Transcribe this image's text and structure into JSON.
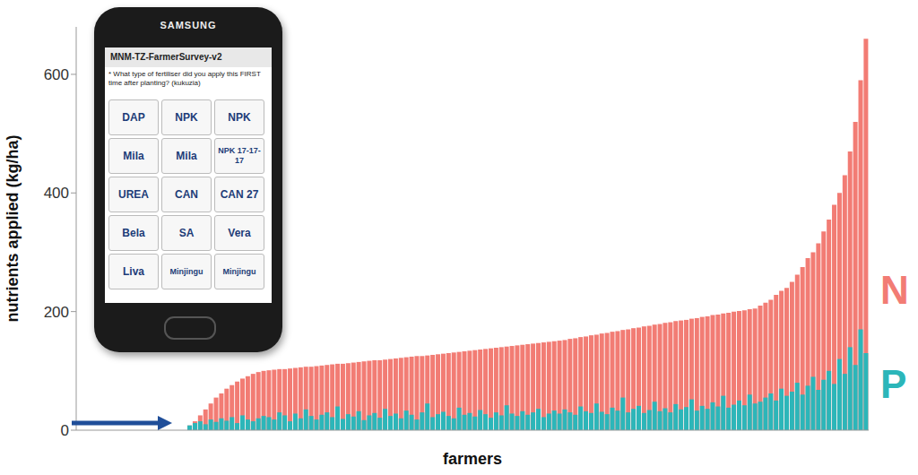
{
  "chart_data": {
    "type": "bar",
    "y_label": "nutrients applied (kg/ha)",
    "x_label": "farmers",
    "ylim": [
      0,
      680
    ],
    "yticks": [
      0,
      200,
      400,
      600
    ],
    "grid": false,
    "stacked": false,
    "tick_labels": "y",
    "series": [
      {
        "name": "N",
        "color": "#f27c74",
        "values": [
          0,
          0,
          0,
          0,
          0,
          0,
          0,
          0,
          0,
          0,
          0,
          0,
          0,
          0,
          0,
          0,
          0,
          0,
          0,
          0,
          0,
          8,
          15,
          25,
          35,
          45,
          55,
          62,
          70,
          76,
          82,
          87,
          91,
          95,
          98,
          100,
          101,
          102,
          103,
          103,
          104,
          105,
          106,
          107,
          107,
          108,
          109,
          110,
          111,
          112,
          112,
          113,
          114,
          115,
          116,
          117,
          118,
          118,
          119,
          120,
          121,
          122,
          123,
          124,
          125,
          125,
          126,
          127,
          128,
          129,
          130,
          131,
          132,
          133,
          134,
          135,
          136,
          137,
          138,
          139,
          140,
          141,
          142,
          143,
          144,
          145,
          146,
          147,
          148,
          149,
          150,
          151,
          152,
          154,
          155,
          157,
          158,
          160,
          161,
          163,
          164,
          166,
          167,
          169,
          170,
          172,
          173,
          175,
          176,
          178,
          179,
          181,
          182,
          184,
          185,
          186,
          188,
          189,
          191,
          192,
          194,
          195,
          197,
          198,
          200,
          201,
          202,
          204,
          205,
          210,
          215,
          220,
          228,
          235,
          240,
          250,
          262,
          275,
          290,
          300,
          315,
          335,
          355,
          380,
          400,
          430,
          470,
          520,
          590,
          660
        ]
      },
      {
        "name": "P",
        "color": "#2cb6b9",
        "values": [
          0,
          0,
          0,
          0,
          0,
          0,
          0,
          0,
          0,
          0,
          0,
          0,
          0,
          0,
          0,
          0,
          0,
          0,
          0,
          0,
          0,
          8,
          12,
          15,
          10,
          18,
          14,
          20,
          16,
          22,
          12,
          25,
          18,
          15,
          20,
          24,
          22,
          18,
          30,
          25,
          15,
          28,
          20,
          35,
          24,
          18,
          26,
          30,
          22,
          40,
          19,
          27,
          23,
          32,
          17,
          25,
          29,
          21,
          36,
          24,
          28,
          20,
          33,
          26,
          18,
          30,
          45,
          22,
          27,
          31,
          24,
          20,
          38,
          26,
          29,
          23,
          34,
          27,
          21,
          30,
          25,
          42,
          28,
          24,
          32,
          26,
          30,
          36,
          22,
          28,
          33,
          28,
          35,
          30,
          26,
          40,
          32,
          29,
          45,
          31,
          27,
          38,
          33,
          55,
          30,
          36,
          41,
          29,
          34,
          48,
          32,
          37,
          30,
          44,
          35,
          39,
          52,
          33,
          41,
          36,
          47,
          40,
          58,
          38,
          43,
          50,
          42,
          60,
          45,
          48,
          55,
          62,
          50,
          70,
          58,
          65,
          80,
          60,
          75,
          90,
          68,
          85,
          100,
          78,
          120,
          95,
          140,
          110,
          170,
          130
        ]
      }
    ],
    "annotations": {
      "phone_brand": "SAMSUNG",
      "app_title": "MNM-TZ-FarmerSurvey-v2",
      "question": "* What type of fertiliser did you apply this FIRST time after planting? (kukuzia)",
      "tiles": [
        "DAP",
        "NPK",
        "NPK",
        "Mila",
        "Mila",
        "NPK 17-17-17",
        "UREA",
        "CAN",
        "CAN 27",
        "Bela",
        "SA",
        "Vera",
        "Liva",
        "Minjingu",
        "Minjingu"
      ]
    }
  }
}
